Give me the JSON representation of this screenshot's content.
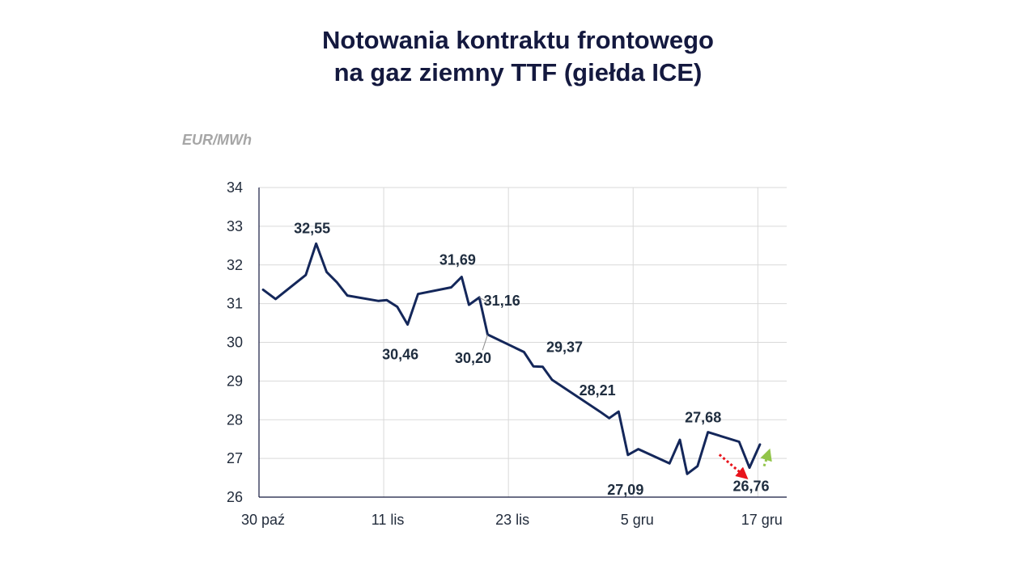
{
  "header": {
    "title_line1": "Notowania kontraktu frontowego",
    "title_line2": "na gaz ziemny TTF (giełda ICE)"
  },
  "chart_data": {
    "type": "line",
    "title": "Notowania kontraktu frontowego na gaz ziemny TTF (giełda ICE)",
    "ylabel": "EUR/MWh",
    "xlabel": "",
    "ylim": [
      26,
      34
    ],
    "yticks": [
      26,
      27,
      28,
      29,
      30,
      31,
      32,
      33,
      34
    ],
    "xlim": [
      0,
      50
    ],
    "xticks": [
      {
        "x": 0,
        "label": "30 paź"
      },
      {
        "x": 12,
        "label": "11 lis"
      },
      {
        "x": 24,
        "label": "23 lis"
      },
      {
        "x": 36,
        "label": "5 gru"
      },
      {
        "x": 48,
        "label": "17 gru"
      }
    ],
    "grid": true,
    "line_color": "#14275a",
    "series": [
      {
        "name": "TTF",
        "x": [
          0.4,
          1.6,
          4.5,
          5.5,
          6.5,
          7.5,
          8.5,
          11.5,
          12.3,
          13.3,
          14.3,
          15.3,
          18.5,
          19.5,
          20.2,
          21.2,
          22.0,
          25.5,
          26.4,
          27.3,
          28.2,
          32.8,
          33.7,
          34.6,
          35.5,
          36.5,
          39.5,
          40.5,
          41.2,
          42.2,
          43.2,
          46.2,
          47.2,
          48.2
        ],
        "values": [
          31.36,
          31.12,
          31.74,
          32.55,
          31.82,
          31.55,
          31.21,
          31.07,
          31.09,
          30.92,
          30.46,
          31.25,
          31.42,
          31.69,
          30.97,
          31.16,
          30.2,
          29.75,
          29.38,
          29.37,
          29.03,
          28.21,
          28.04,
          28.21,
          27.09,
          27.24,
          26.87,
          27.48,
          26.6,
          26.8,
          27.68,
          27.43,
          26.76,
          27.36
        ]
      }
    ],
    "annotations": [
      {
        "label": "32,55",
        "value": 32.55
      },
      {
        "label": "31,69",
        "value": 31.69
      },
      {
        "label": "31,16",
        "value": 31.16
      },
      {
        "label": "30,46",
        "value": 30.46
      },
      {
        "label": "30,20",
        "value": 30.2
      },
      {
        "label": "29,37",
        "value": 29.37
      },
      {
        "label": "28,21",
        "value": 28.21
      },
      {
        "label": "27,09",
        "value": 27.09
      },
      {
        "label": "27,68",
        "value": 27.68
      },
      {
        "label": "26,76",
        "value": 26.76
      }
    ],
    "trend_arrows": [
      {
        "name": "down",
        "color": "#e8141c",
        "from": {
          "x": 44.3,
          "y": 27.1
        },
        "to": {
          "x": 46.9,
          "y": 26.5
        }
      },
      {
        "name": "up",
        "color": "#92c54a",
        "from": {
          "x": 48.6,
          "y": 26.8
        },
        "to": {
          "x": 49.1,
          "y": 27.2
        }
      }
    ]
  }
}
